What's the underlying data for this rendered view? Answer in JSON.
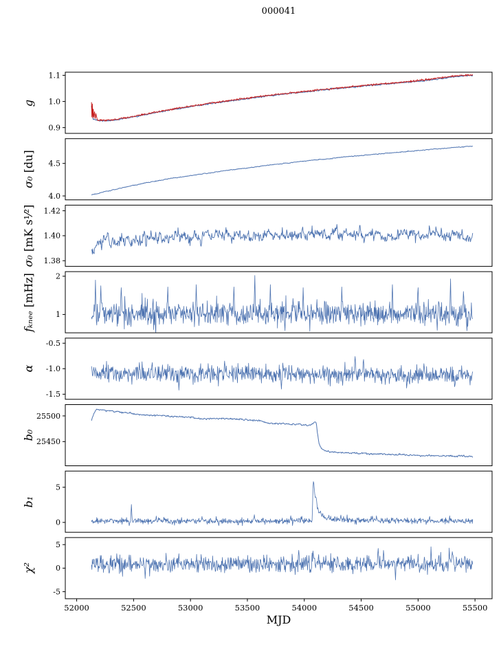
{
  "title": "000041",
  "xlabel": "MJD",
  "colors": {
    "blue": "#4c72b0",
    "red": "#c62121",
    "axis": "#000000",
    "text": "#000000"
  },
  "axes": {
    "x_range": [
      51900,
      55650
    ],
    "data_x_range": [
      52130,
      55480
    ],
    "x_ticks": [
      52000,
      52500,
      53000,
      53500,
      54000,
      54500,
      55000,
      55500
    ],
    "x_tick_labels": [
      "52000",
      "52500",
      "53000",
      "53500",
      "54000",
      "54500",
      "55000",
      "55500"
    ]
  },
  "chart_data": [
    {
      "type": "line",
      "ylabel": "g",
      "ylabel_var": "g",
      "ylabel_unit": "",
      "ylim": [
        0.878,
        1.112
      ],
      "yticks": [
        0.9,
        1.0,
        1.1
      ],
      "ytick_labels": [
        "0.9",
        "1.0",
        "1.1"
      ],
      "series": [
        {
          "name": "g-blue",
          "color": "blue",
          "width": 1.1,
          "noise": 0.0012,
          "smooth": 0.3,
          "seed": 11,
          "trend": [
            [
              52130,
              0.985
            ],
            [
              52145,
              0.933
            ],
            [
              52200,
              0.926
            ],
            [
              52280,
              0.9265
            ],
            [
              52350,
              0.93
            ],
            [
              52450,
              0.937
            ],
            [
              52600,
              0.9495
            ],
            [
              52800,
              0.9655
            ],
            [
              53000,
              0.98
            ],
            [
              53200,
              0.9935
            ],
            [
              53400,
              1.005
            ],
            [
              53600,
              1.0165
            ],
            [
              53800,
              1.027
            ],
            [
              54000,
              1.0365
            ],
            [
              54200,
              1.0455
            ],
            [
              54400,
              1.054
            ],
            [
              54600,
              1.062
            ],
            [
              54800,
              1.0695
            ],
            [
              55000,
              1.0775
            ],
            [
              55150,
              1.0845
            ],
            [
              55300,
              1.0935
            ],
            [
              55400,
              1.0985
            ],
            [
              55480,
              1.1
            ]
          ]
        },
        {
          "name": "g-red",
          "color": "red",
          "width": 1.0,
          "noise": 0.0015,
          "seed": 12,
          "trend": [
            [
              52130,
              0.995
            ],
            [
              52134,
              0.938
            ],
            [
              52138,
              0.99
            ],
            [
              52142,
              0.934
            ],
            [
              52146,
              0.975
            ],
            [
              52150,
              0.931
            ],
            [
              52156,
              0.97
            ],
            [
              52162,
              0.929
            ],
            [
              52170,
              0.955
            ],
            [
              52180,
              0.928
            ],
            [
              52200,
              0.9285
            ],
            [
              52280,
              0.9285
            ],
            [
              52350,
              0.932
            ],
            [
              52450,
              0.939
            ],
            [
              52600,
              0.9515
            ],
            [
              52800,
              0.9675
            ],
            [
              53000,
              0.982
            ],
            [
              53200,
              0.9955
            ],
            [
              53400,
              1.007
            ],
            [
              53600,
              1.0185
            ],
            [
              53800,
              1.029
            ],
            [
              54000,
              1.0385
            ],
            [
              54200,
              1.0475
            ],
            [
              54400,
              1.056
            ],
            [
              54600,
              1.064
            ],
            [
              54800,
              1.0715
            ],
            [
              55000,
              1.0795
            ],
            [
              55150,
              1.0875
            ],
            [
              55300,
              1.0965
            ],
            [
              55400,
              1.1
            ],
            [
              55480,
              1.101
            ]
          ]
        }
      ]
    },
    {
      "type": "line",
      "ylabel": "sigma0 [du]",
      "ylabel_var": "σ₀",
      "ylabel_unit": " [du]",
      "ylim": [
        3.94,
        4.88
      ],
      "yticks": [
        4.0,
        4.5
      ],
      "ytick_labels": [
        "4.0",
        "4.5"
      ],
      "series": [
        {
          "name": "sigma0-du",
          "color": "blue",
          "width": 1.0,
          "noise": 0.003,
          "smooth": 0.5,
          "seed": 21,
          "trend": [
            [
              52130,
              4.02
            ],
            [
              52180,
              4.035
            ],
            [
              52250,
              4.065
            ],
            [
              52350,
              4.105
            ],
            [
              52450,
              4.145
            ],
            [
              52550,
              4.18
            ],
            [
              52650,
              4.215
            ],
            [
              52750,
              4.245
            ],
            [
              52850,
              4.275
            ],
            [
              52950,
              4.3
            ],
            [
              53050,
              4.325
            ],
            [
              53150,
              4.35
            ],
            [
              53250,
              4.375
            ],
            [
              53350,
              4.4
            ],
            [
              53450,
              4.42
            ],
            [
              53550,
              4.44
            ],
            [
              53650,
              4.465
            ],
            [
              53750,
              4.485
            ],
            [
              53850,
              4.505
            ],
            [
              53950,
              4.525
            ],
            [
              54050,
              4.545
            ],
            [
              54150,
              4.56
            ],
            [
              54250,
              4.58
            ],
            [
              54350,
              4.6
            ],
            [
              54450,
              4.615
            ],
            [
              54550,
              4.63
            ],
            [
              54650,
              4.645
            ],
            [
              54750,
              4.66
            ],
            [
              54850,
              4.675
            ],
            [
              54950,
              4.69
            ],
            [
              55050,
              4.705
            ],
            [
              55150,
              4.72
            ],
            [
              55250,
              4.735
            ],
            [
              55350,
              4.75
            ],
            [
              55480,
              4.765
            ]
          ]
        }
      ]
    },
    {
      "type": "line",
      "ylabel": "sigma0 [mK s^1/2]",
      "ylabel_var": "σ₀",
      "ylabel_unit": " [mK s¹⁄²]",
      "ylim": [
        1.3755,
        1.4245
      ],
      "yticks": [
        1.38,
        1.4,
        1.42
      ],
      "ytick_labels": [
        "1.38",
        "1.40",
        "1.42"
      ],
      "series": [
        {
          "name": "sigma0-rate",
          "color": "blue",
          "width": 0.9,
          "noise": 0.0026,
          "smooth": 0.5,
          "seed": 31,
          "trend": [
            [
              52130,
              1.3875
            ],
            [
              52145,
              1.3845
            ],
            [
              52160,
              1.39
            ],
            [
              52180,
              1.3925
            ],
            [
              52220,
              1.3965
            ],
            [
              52260,
              1.3975
            ],
            [
              52320,
              1.3965
            ],
            [
              52400,
              1.3955
            ],
            [
              52500,
              1.3965
            ],
            [
              52650,
              1.3975
            ],
            [
              52800,
              1.3985
            ],
            [
              53000,
              1.3995
            ],
            [
              53200,
              1.4
            ],
            [
              53400,
              1.4005
            ],
            [
              53700,
              1.401
            ],
            [
              54000,
              1.4015
            ],
            [
              54300,
              1.4015
            ],
            [
              54600,
              1.401
            ],
            [
              54900,
              1.4005
            ],
            [
              55100,
              1.4015
            ],
            [
              55300,
              1.401
            ],
            [
              55480,
              1.3985
            ]
          ]
        }
      ]
    },
    {
      "type": "line",
      "ylabel": "f_knee [mHz]",
      "ylabel_var": "fₖₙₑₑ",
      "ylabel_unit": " [mHz]",
      "ylim": [
        0.52,
        2.12
      ],
      "yticks": [
        1,
        2
      ],
      "ytick_labels": [
        "1",
        "2"
      ],
      "series": [
        {
          "name": "fknee",
          "color": "blue",
          "width": 0.8,
          "noise": 0.16,
          "seed": 41,
          "trend": [
            [
              52130,
              1.03
            ],
            [
              55480,
              1.02
            ]
          ],
          "spikes": [
            [
              52165,
              1.9
            ],
            [
              52210,
              1.75
            ],
            [
              52390,
              1.7
            ],
            [
              52800,
              1.72
            ],
            [
              53050,
              1.78
            ],
            [
              53380,
              1.72
            ],
            [
              53565,
              2.02
            ],
            [
              53700,
              1.78
            ],
            [
              53990,
              1.7
            ],
            [
              54330,
              1.72
            ],
            [
              54775,
              1.78
            ],
            [
              55000,
              1.7
            ],
            [
              55285,
              1.93
            ],
            [
              55400,
              1.6
            ]
          ]
        }
      ]
    },
    {
      "type": "line",
      "ylabel": "alpha",
      "ylabel_var": "α",
      "ylabel_unit": "",
      "ylim": [
        -1.6,
        -0.4
      ],
      "yticks": [
        -1.5,
        -1.0,
        -0.5
      ],
      "ytick_labels": [
        "-1.5",
        "-1.0",
        "-0.5"
      ],
      "series": [
        {
          "name": "alpha",
          "color": "blue",
          "width": 0.8,
          "noise": 0.085,
          "seed": 51,
          "trend": [
            [
              52130,
              -1.1
            ],
            [
              55480,
              -1.13
            ]
          ],
          "spikes": [
            [
              52550,
              -0.88
            ],
            [
              52900,
              -1.42
            ],
            [
              53300,
              -0.85
            ],
            [
              53800,
              -1.4
            ],
            [
              54445,
              -0.76
            ],
            [
              54520,
              -0.82
            ],
            [
              54900,
              -1.38
            ],
            [
              55050,
              -0.9
            ]
          ]
        }
      ]
    },
    {
      "type": "line",
      "ylabel": "b0",
      "ylabel_var": "b₀",
      "ylabel_unit": "",
      "ylim": [
        25403,
        25522
      ],
      "yticks": [
        25450,
        25500
      ],
      "ytick_labels": [
        "25450",
        "25500"
      ],
      "series": [
        {
          "name": "b0",
          "color": "blue",
          "width": 1.0,
          "noise": 0.8,
          "smooth": 0.4,
          "seed": 61,
          "trend": [
            [
              52130,
              25491
            ],
            [
              52150,
              25505
            ],
            [
              52170,
              25512
            ],
            [
              52250,
              25511
            ],
            [
              52330,
              25509
            ],
            [
              52400,
              25507
            ],
            [
              52480,
              25505
            ],
            [
              52520,
              25503
            ],
            [
              52620,
              25502
            ],
            [
              52720,
              25501
            ],
            [
              52820,
              25499
            ],
            [
              52920,
              25498
            ],
            [
              53020,
              25497
            ],
            [
              53070,
              25494
            ],
            [
              53170,
              25494
            ],
            [
              53270,
              25495
            ],
            [
              53370,
              25494
            ],
            [
              53470,
              25493
            ],
            [
              53520,
              25492
            ],
            [
              53620,
              25490
            ],
            [
              53670,
              25487
            ],
            [
              53770,
              25485
            ],
            [
              53870,
              25484
            ],
            [
              53970,
              25483
            ],
            [
              54030,
              25481
            ],
            [
              54060,
              25483
            ],
            [
              54090,
              25488
            ],
            [
              54105,
              25487
            ],
            [
              54115,
              25465
            ],
            [
              54130,
              25446
            ],
            [
              54150,
              25437
            ],
            [
              54180,
              25432
            ],
            [
              54230,
              25430
            ],
            [
              54300,
              25429
            ],
            [
              54400,
              25428
            ],
            [
              54500,
              25427
            ],
            [
              54600,
              25426
            ],
            [
              54750,
              25425
            ],
            [
              54900,
              25424
            ],
            [
              55050,
              25423
            ],
            [
              55200,
              25422
            ],
            [
              55350,
              25422
            ],
            [
              55480,
              25421
            ]
          ]
        }
      ]
    },
    {
      "type": "line",
      "ylabel": "b1",
      "ylabel_var": "b₁",
      "ylabel_unit": "",
      "ylim": [
        -1.4,
        7.3
      ],
      "yticks": [
        0,
        5
      ],
      "ytick_labels": [
        "0",
        "5"
      ],
      "series": [
        {
          "name": "b1",
          "color": "blue",
          "width": 0.8,
          "noise": 0.22,
          "seed": 71,
          "trend": [
            [
              52130,
              0.2
            ],
            [
              54050,
              0.2
            ],
            [
              54070,
              0.3
            ],
            [
              54078,
              6.4
            ],
            [
              54088,
              4.8
            ],
            [
              54095,
              3.2
            ],
            [
              54105,
              3.6
            ],
            [
              54115,
              2.2
            ],
            [
              54130,
              1.6
            ],
            [
              54150,
              1.1
            ],
            [
              54180,
              0.8
            ],
            [
              54230,
              0.55
            ],
            [
              54300,
              0.4
            ],
            [
              54400,
              0.3
            ],
            [
              55480,
              0.2
            ]
          ],
          "spikes": [
            [
              52480,
              2.55
            ],
            [
              52700,
              0.9
            ],
            [
              53100,
              0.85
            ],
            [
              53560,
              1.1
            ],
            [
              53880,
              0.95
            ],
            [
              54600,
              0.9
            ],
            [
              55100,
              0.85
            ]
          ]
        }
      ]
    },
    {
      "type": "line",
      "ylabel": "chi^2",
      "ylabel_var": "χ²",
      "ylabel_unit": "",
      "ylim": [
        -6.5,
        6.5
      ],
      "yticks": [
        -5,
        0,
        5
      ],
      "ytick_labels": [
        "-5",
        "0",
        "5"
      ],
      "series": [
        {
          "name": "chi2",
          "color": "blue",
          "width": 0.8,
          "noise": 0.9,
          "seed": 81,
          "trend": [
            [
              52130,
              0.9
            ],
            [
              55480,
              1.0
            ]
          ],
          "spikes": [
            [
              52600,
              -2.2
            ],
            [
              53950,
              3.8
            ],
            [
              54650,
              4.2
            ],
            [
              54800,
              -2.5
            ],
            [
              55300,
              3.5
            ]
          ]
        }
      ]
    }
  ]
}
